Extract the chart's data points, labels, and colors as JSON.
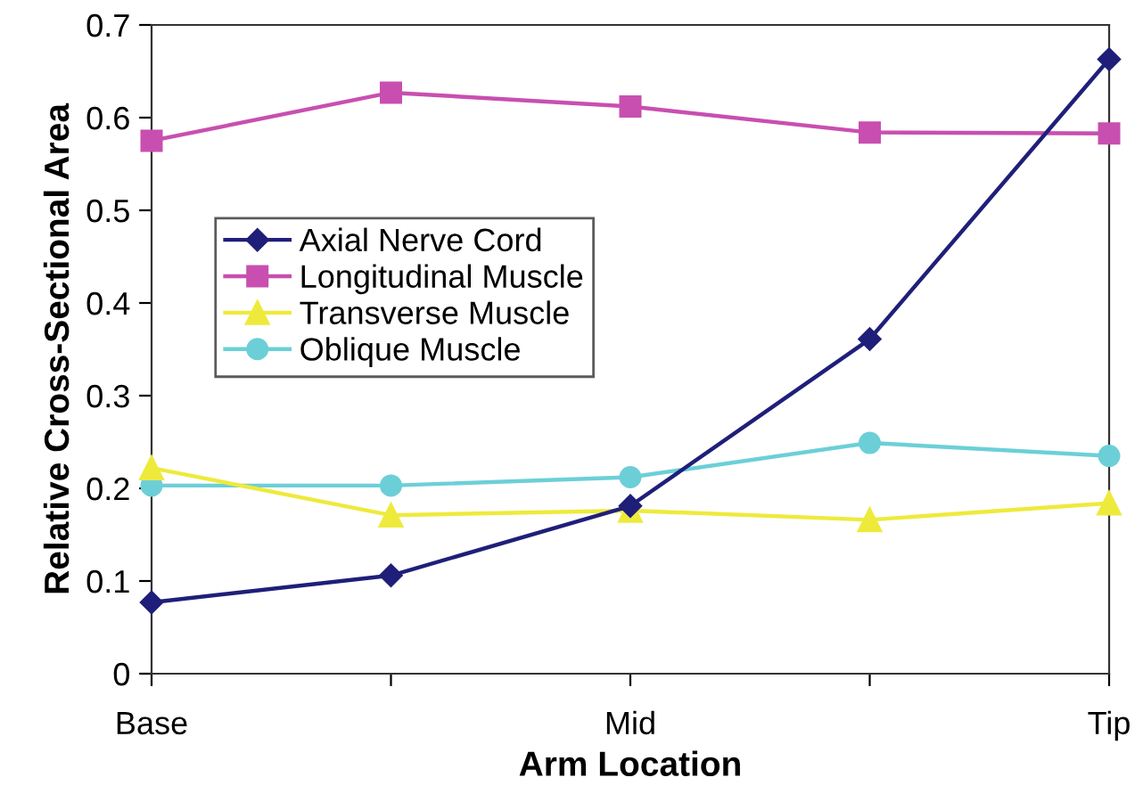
{
  "chart_data": {
    "type": "line",
    "xlabel": "Arm Location",
    "ylabel": "Relative Cross-Sectional Area",
    "categories": [
      "Base",
      null,
      "Mid",
      null,
      "Tip"
    ],
    "series": [
      {
        "name": "Axial Nerve Cord",
        "color": "#1f1f7a",
        "marker": "diamond",
        "values": [
          0.077,
          0.106,
          0.181,
          0.361,
          0.663
        ]
      },
      {
        "name": "Longitudinal Muscle",
        "color": "#c84fb0",
        "marker": "square",
        "values": [
          0.575,
          0.627,
          0.612,
          0.584,
          0.583
        ]
      },
      {
        "name": "Transverse Muscle",
        "color": "#eeea3c",
        "marker": "triangle",
        "values": [
          0.222,
          0.171,
          0.176,
          0.166,
          0.184
        ]
      },
      {
        "name": "Oblique Muscle",
        "color": "#6ccfd8",
        "marker": "circle",
        "values": [
          0.203,
          0.203,
          0.212,
          0.249,
          0.235
        ]
      }
    ],
    "ylim": [
      0,
      0.7
    ],
    "yticks": [
      0,
      0.1,
      0.2,
      0.3,
      0.4,
      0.5,
      0.6,
      0.7
    ],
    "grid": false,
    "legend": "left"
  }
}
